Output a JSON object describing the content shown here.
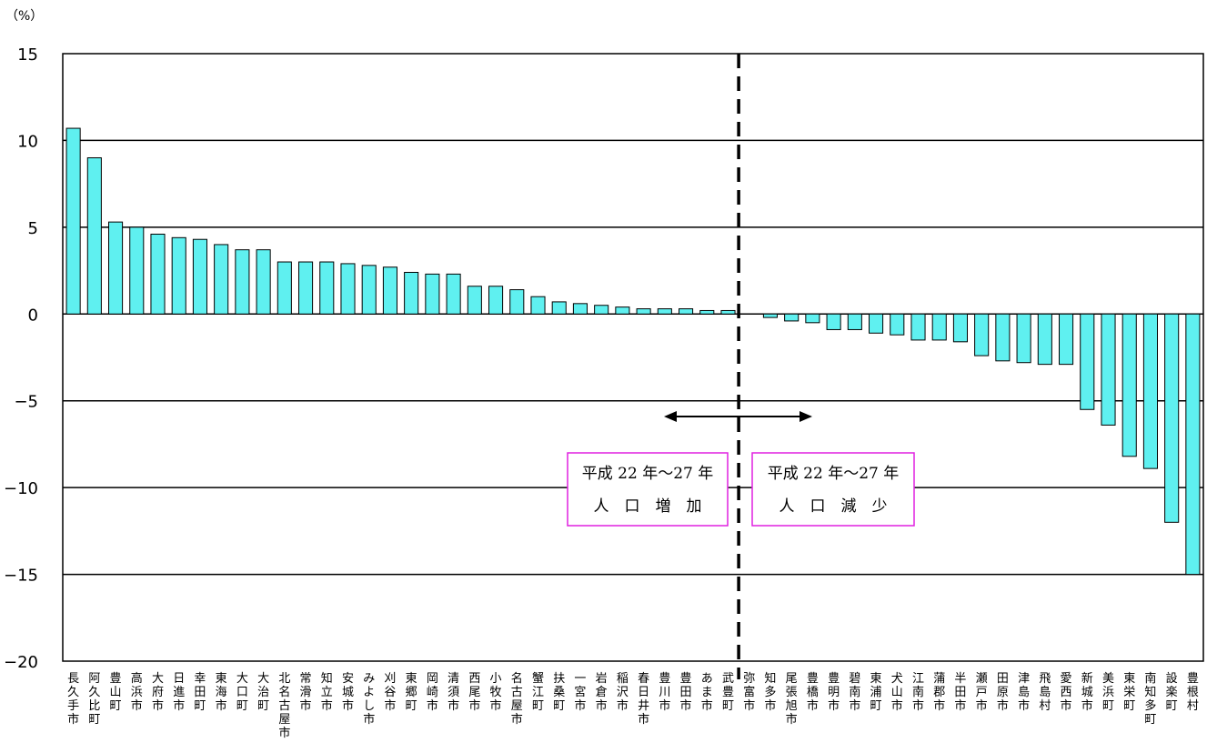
{
  "chart_data": {
    "type": "bar",
    "unit_label": "（%）",
    "ylim": [
      -20,
      15
    ],
    "yticks": [
      15,
      10,
      5,
      0,
      -5,
      -10,
      -15,
      -20
    ],
    "ytick_labels": [
      "15",
      "10",
      "5",
      "0",
      "−5",
      "−10",
      "−15",
      "−20"
    ],
    "grid": true,
    "bar_color": "#5ff0f0",
    "categories": [
      "長久手市",
      "阿久比町",
      "豊山町",
      "高浜市",
      "大府市",
      "日進市",
      "幸田町",
      "東海市",
      "大口町",
      "大治町",
      "北名古屋市",
      "常滑市",
      "知立市",
      "安城市",
      "みよし市",
      "刈谷市",
      "東郷町",
      "岡崎市",
      "清須市",
      "西尾市",
      "小牧市",
      "名古屋市",
      "蟹江町",
      "扶桑町",
      "一宮市",
      "岩倉市",
      "稲沢市",
      "春日井市",
      "豊川市",
      "豊田市",
      "あま市",
      "武豊町",
      "弥富市",
      "知多市",
      "尾張旭市",
      "豊橋市",
      "豊明市",
      "碧南市",
      "東浦町",
      "犬山市",
      "江南市",
      "蒲郡市",
      "半田市",
      "瀬戸市",
      "田原市",
      "津島市",
      "飛島村",
      "愛西市",
      "新城市",
      "美浜町",
      "東栄町",
      "南知多町",
      "設楽町",
      "豊根村"
    ],
    "values": [
      10.7,
      9.0,
      5.3,
      5.0,
      4.6,
      4.4,
      4.3,
      4.0,
      3.7,
      3.7,
      3.0,
      3.0,
      3.0,
      2.9,
      2.8,
      2.7,
      2.4,
      2.3,
      2.3,
      1.6,
      1.6,
      1.4,
      1.0,
      0.7,
      0.6,
      0.5,
      0.4,
      0.3,
      0.3,
      0.3,
      0.2,
      0.2,
      0.0,
      -0.2,
      -0.4,
      -0.5,
      -0.9,
      -0.9,
      -1.1,
      -1.2,
      -1.5,
      -1.5,
      -1.6,
      -2.4,
      -2.7,
      -2.8,
      -2.9,
      -2.9,
      -5.5,
      -6.4,
      -8.2,
      -8.9,
      -12.0,
      -15.0
    ],
    "annotations": {
      "increase_box": [
        "平成 22 年～27 年",
        "人　口　増　加"
      ],
      "decrease_box": [
        "平成 22 年～27 年",
        "人　口　減　少"
      ],
      "divider_style": "dashed",
      "arrow": "double-headed"
    }
  }
}
